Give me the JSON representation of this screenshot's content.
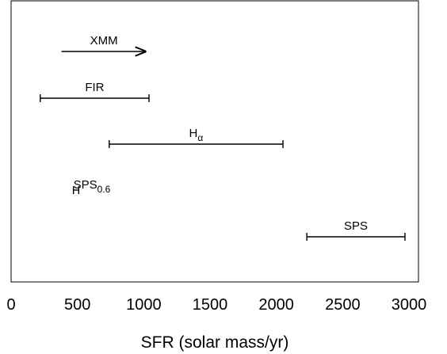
{
  "chart_data": {
    "type": "range",
    "xlabel": "SFR (solar mass/yr)",
    "xlim": [
      0,
      3000
    ],
    "xticks": [
      "0",
      "500",
      "1000",
      "1500",
      "2000",
      "2500",
      "3000"
    ],
    "ranges": [
      {
        "label": "XMM",
        "sub": "",
        "low": 380,
        "high": 1020,
        "kind": "lower-limit"
      },
      {
        "label": "FIR",
        "sub": "",
        "low": 220,
        "high": 1040,
        "kind": "range"
      },
      {
        "label": "H",
        "sub": "α",
        "low": 740,
        "high": 2050,
        "kind": "range"
      },
      {
        "label": "SPS",
        "sub": "0.6",
        "low": 470,
        "high": 510,
        "kind": "range"
      },
      {
        "label": "SPS",
        "sub": "",
        "low": 2230,
        "high": 2970,
        "kind": "range"
      }
    ]
  }
}
